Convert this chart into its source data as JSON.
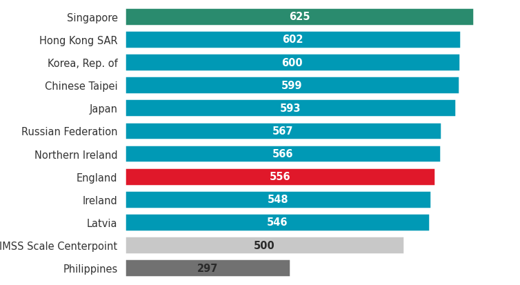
{
  "categories": [
    "Singapore",
    "Hong Kong SAR",
    "Korea, Rep. of",
    "Chinese Taipei",
    "Japan",
    "Russian Federation",
    "Northern Ireland",
    "England",
    "Ireland",
    "Latvia",
    "TIMSS Scale Centerpoint",
    "Philippines"
  ],
  "values": [
    625,
    602,
    600,
    599,
    593,
    567,
    566,
    556,
    548,
    546,
    500,
    297
  ],
  "bar_colors": [
    "#2a8b6e",
    "#0099b5",
    "#0099b5",
    "#0099b5",
    "#0099b5",
    "#0099b5",
    "#0099b5",
    "#e0182a",
    "#0099b5",
    "#0099b5",
    "#c8c8c8",
    "#717171"
  ],
  "label_color_dark": "#2a2a2a",
  "label_color_light": "#ffffff",
  "background_color": "#ffffff",
  "bar_height": 0.78,
  "xlim": [
    0,
    680
  ],
  "label_fontsize": 10.5,
  "tick_fontsize": 10.5
}
